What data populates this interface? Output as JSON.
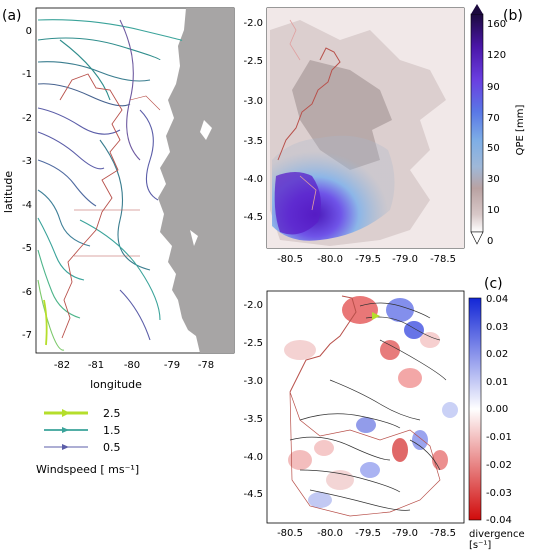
{
  "panel_a": {
    "letter": "(a)",
    "xlabel": "longitude",
    "ylabel": "latitude",
    "x_ticks": [
      "-82",
      "-81",
      "-80",
      "-79",
      "-78"
    ],
    "y_ticks": [
      "0",
      "-1",
      "-2",
      "-3",
      "-4",
      "-5",
      "-6",
      "-7"
    ],
    "legend": {
      "entries": [
        {
          "value": "2.5",
          "color": "#b5de2b"
        },
        {
          "value": "1.5",
          "color": "#3aa39a"
        },
        {
          "value": "0.5",
          "color": "#5b5da8"
        }
      ],
      "title": "Windspeed [ ms⁻¹]"
    }
  },
  "panel_b": {
    "letter": "(b)",
    "x_ticks": [
      "-80.5",
      "-80.0",
      "-79.5",
      "-79.0",
      "-78.5"
    ],
    "y_ticks": [
      "-2.0",
      "-2.5",
      "-3.0",
      "-3.5",
      "-4.0",
      "-4.5"
    ],
    "colorbar": {
      "label": "QPE [mm]",
      "ticks": [
        "160",
        "120",
        "90",
        "70",
        "50",
        "30",
        "10",
        "0"
      ]
    }
  },
  "panel_c": {
    "letter": "(c)",
    "x_ticks": [
      "-80.5",
      "-80.0",
      "-79.5",
      "-79.0",
      "-78.5"
    ],
    "y_ticks": [
      "-2.0",
      "-2.5",
      "-3.0",
      "-3.5",
      "-4.0",
      "-4.5"
    ],
    "colorbar": {
      "label_line1": "divergence",
      "label_line2": "[s⁻¹]",
      "ticks": [
        "0.04",
        "0.03",
        "0.02",
        "0.01",
        "0.00",
        "-0.01",
        "-0.02",
        "-0.03",
        "-0.04"
      ]
    }
  }
}
